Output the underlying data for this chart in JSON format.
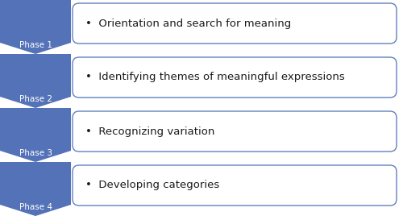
{
  "phases": [
    "Phase 1",
    "Phase 2",
    "Phase 3",
    "Phase 4"
  ],
  "descriptions": [
    "•  Orientation and search for meaning",
    "•  Identifying themes of meaningful expressions",
    "•  Recognizing variation",
    "•  Developing categories"
  ],
  "chevron_color": "#5472b8",
  "box_border_color": "#6080c0",
  "box_bg_color": "#ffffff",
  "text_color_phase": "#ffffff",
  "text_color_desc": "#1a1a1a",
  "bg_color": "#ffffff",
  "phase_fontsize": 7.5,
  "desc_fontsize": 9.5
}
